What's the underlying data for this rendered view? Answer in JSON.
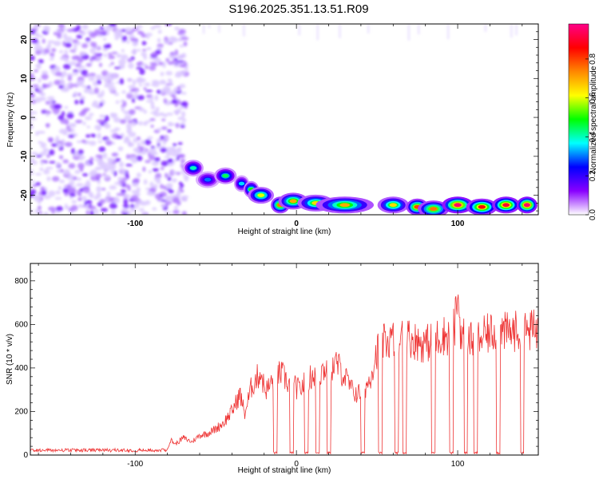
{
  "title": "S196.2025.351.13.51.R09",
  "chart_data": [
    {
      "type": "heatmap",
      "panel": "spectrogram",
      "xlabel": "Height of straight line (km)",
      "ylabel": "Frequency (Hz)",
      "xlim": [
        -165,
        150
      ],
      "ylim": [
        -25,
        24
      ],
      "x_ticks": [
        -100,
        0,
        100
      ],
      "x_tick_labels": [
        "-100",
        "0",
        "100"
      ],
      "y_ticks": [
        20,
        10,
        0,
        -10,
        -20
      ],
      "y_tick_labels": [
        "20",
        "10",
        "0",
        "-10",
        "-20"
      ],
      "colorbar": {
        "label": "Normalized spectral amplitude",
        "range": [
          0,
          0.98
        ],
        "ticks": [
          0.0,
          0.2,
          0.4,
          0.6,
          0.8
        ],
        "tick_labels": [
          "0.0",
          "0.2",
          "0.4",
          "0.6",
          "0.8"
        ],
        "colormap": [
          "#ffffff",
          "#8800ff",
          "#0000ff",
          "#00ffff",
          "#00ff00",
          "#ffff00",
          "#ff8800",
          "#ff0000",
          "#ff0088"
        ]
      },
      "noise_region": {
        "x_range": [
          -165,
          -68
        ],
        "freq_range": [
          -25,
          24
        ],
        "amplitude": 0.15
      },
      "signal_trace": [
        {
          "x": -64,
          "freq": -13,
          "amp": 0.4
        },
        {
          "x": -55,
          "freq": -16,
          "amp": 0.3
        },
        {
          "x": -44,
          "freq": -15,
          "amp": 0.45
        },
        {
          "x": -34,
          "freq": -17,
          "amp": 0.35
        },
        {
          "x": -28,
          "freq": -18.5,
          "amp": 0.5
        },
        {
          "x": -22,
          "freq": -20,
          "amp": 0.6
        },
        {
          "x": -10,
          "freq": -22.5,
          "amp": 0.75
        },
        {
          "x": -2,
          "freq": -21.5,
          "amp": 0.7
        },
        {
          "x": 12,
          "freq": -22,
          "amp": 0.65
        },
        {
          "x": 30,
          "freq": -22.5,
          "amp": 0.7
        },
        {
          "x": 60,
          "freq": -22.5,
          "amp": 0.65
        },
        {
          "x": 75,
          "freq": -23,
          "amp": 0.8
        },
        {
          "x": 85,
          "freq": -23.5,
          "amp": 0.75
        },
        {
          "x": 100,
          "freq": -22.5,
          "amp": 0.95
        },
        {
          "x": 115,
          "freq": -23,
          "amp": 0.85
        },
        {
          "x": 130,
          "freq": -22.5,
          "amp": 0.9
        },
        {
          "x": 143,
          "freq": -22.5,
          "amp": 0.95
        }
      ]
    },
    {
      "type": "line",
      "panel": "snr",
      "xlabel": "Height of straight line (km)",
      "ylabel": "SNR (10 * v/v)",
      "xlim": [
        -165,
        150
      ],
      "ylim": [
        0,
        880
      ],
      "x_ticks": [
        -100,
        0,
        100
      ],
      "x_tick_labels": [
        "-100",
        "0",
        "100"
      ],
      "y_ticks": [
        0,
        200,
        400,
        600,
        800
      ],
      "y_tick_labels": [
        "0",
        "200",
        "400",
        "600",
        "800"
      ],
      "series": [
        {
          "name": "SNR",
          "color": "#ee3333",
          "x": [
            -165,
            -140,
            -120,
            -100,
            -90,
            -80,
            -78,
            -75,
            -70,
            -65,
            -60,
            -55,
            -50,
            -45,
            -40,
            -35,
            -32,
            -28,
            -25,
            -22,
            -20,
            -18,
            -15,
            -12,
            -10,
            -8,
            -5,
            -3,
            0,
            2,
            5,
            8,
            10,
            12,
            15,
            18,
            20,
            22,
            25,
            30,
            35,
            40,
            45,
            50,
            55,
            60,
            65,
            70,
            75,
            80,
            85,
            90,
            95,
            98,
            100,
            102,
            105,
            110,
            115,
            120,
            125,
            130,
            135,
            140,
            145,
            150
          ],
          "y": [
            25,
            25,
            25,
            25,
            25,
            30,
            70,
            50,
            80,
            60,
            90,
            100,
            120,
            150,
            200,
            280,
            190,
            310,
            350,
            380,
            310,
            300,
            340,
            350,
            380,
            360,
            330,
            320,
            310,
            300,
            330,
            350,
            370,
            360,
            380,
            400,
            390,
            400,
            420,
            360,
            290,
            280,
            340,
            480,
            520,
            530,
            540,
            540,
            520,
            510,
            530,
            550,
            550,
            580,
            740,
            560,
            540,
            520,
            540,
            560,
            570,
            560,
            570,
            560,
            570,
            580
          ]
        }
      ],
      "dropouts": [
        -13,
        -3,
        6,
        13,
        20,
        41,
        52,
        62,
        67,
        85,
        96,
        105,
        111,
        125,
        140
      ]
    }
  ]
}
